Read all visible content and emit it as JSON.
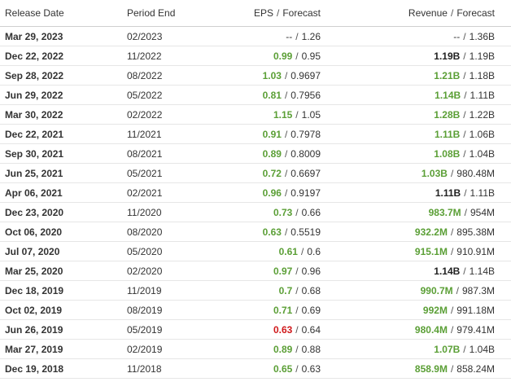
{
  "header": {
    "release_date": "Release Date",
    "period_end": "Period End",
    "eps": "EPS",
    "slash": "/",
    "eps_forecast": "Forecast",
    "revenue": "Revenue",
    "revenue_forecast": "Forecast"
  },
  "colors": {
    "beat": "#5b9f36",
    "miss": "#d0191b",
    "inline": "#222222"
  },
  "rows": [
    {
      "date": "Mar 29, 2023",
      "period": "02/2023",
      "eps": "--",
      "eps_forecast": "1.26",
      "eps_status": "na",
      "rev": "--",
      "rev_forecast": "1.36B",
      "rev_status": "na"
    },
    {
      "date": "Dec 22, 2022",
      "period": "11/2022",
      "eps": "0.99",
      "eps_forecast": "0.95",
      "eps_status": "pos",
      "rev": "1.19B",
      "rev_forecast": "1.19B",
      "rev_status": "neu"
    },
    {
      "date": "Sep 28, 2022",
      "period": "08/2022",
      "eps": "1.03",
      "eps_forecast": "0.9697",
      "eps_status": "pos",
      "rev": "1.21B",
      "rev_forecast": "1.18B",
      "rev_status": "pos"
    },
    {
      "date": "Jun 29, 2022",
      "period": "05/2022",
      "eps": "0.81",
      "eps_forecast": "0.7956",
      "eps_status": "pos",
      "rev": "1.14B",
      "rev_forecast": "1.11B",
      "rev_status": "pos"
    },
    {
      "date": "Mar 30, 2022",
      "period": "02/2022",
      "eps": "1.15",
      "eps_forecast": "1.05",
      "eps_status": "pos",
      "rev": "1.28B",
      "rev_forecast": "1.22B",
      "rev_status": "pos"
    },
    {
      "date": "Dec 22, 2021",
      "period": "11/2021",
      "eps": "0.91",
      "eps_forecast": "0.7978",
      "eps_status": "pos",
      "rev": "1.11B",
      "rev_forecast": "1.06B",
      "rev_status": "pos"
    },
    {
      "date": "Sep 30, 2021",
      "period": "08/2021",
      "eps": "0.89",
      "eps_forecast": "0.8009",
      "eps_status": "pos",
      "rev": "1.08B",
      "rev_forecast": "1.04B",
      "rev_status": "pos"
    },
    {
      "date": "Jun 25, 2021",
      "period": "05/2021",
      "eps": "0.72",
      "eps_forecast": "0.6697",
      "eps_status": "pos",
      "rev": "1.03B",
      "rev_forecast": "980.48M",
      "rev_status": "pos"
    },
    {
      "date": "Apr 06, 2021",
      "period": "02/2021",
      "eps": "0.96",
      "eps_forecast": "0.9197",
      "eps_status": "pos",
      "rev": "1.11B",
      "rev_forecast": "1.11B",
      "rev_status": "neu"
    },
    {
      "date": "Dec 23, 2020",
      "period": "11/2020",
      "eps": "0.73",
      "eps_forecast": "0.66",
      "eps_status": "pos",
      "rev": "983.7M",
      "rev_forecast": "954M",
      "rev_status": "pos"
    },
    {
      "date": "Oct 06, 2020",
      "period": "08/2020",
      "eps": "0.63",
      "eps_forecast": "0.5519",
      "eps_status": "pos",
      "rev": "932.2M",
      "rev_forecast": "895.38M",
      "rev_status": "pos"
    },
    {
      "date": "Jul 07, 2020",
      "period": "05/2020",
      "eps": "0.61",
      "eps_forecast": "0.6",
      "eps_status": "pos",
      "rev": "915.1M",
      "rev_forecast": "910.91M",
      "rev_status": "pos"
    },
    {
      "date": "Mar 25, 2020",
      "period": "02/2020",
      "eps": "0.97",
      "eps_forecast": "0.96",
      "eps_status": "pos",
      "rev": "1.14B",
      "rev_forecast": "1.14B",
      "rev_status": "neu"
    },
    {
      "date": "Dec 18, 2019",
      "period": "11/2019",
      "eps": "0.7",
      "eps_forecast": "0.68",
      "eps_status": "pos",
      "rev": "990.7M",
      "rev_forecast": "987.3M",
      "rev_status": "pos"
    },
    {
      "date": "Oct 02, 2019",
      "period": "08/2019",
      "eps": "0.71",
      "eps_forecast": "0.69",
      "eps_status": "pos",
      "rev": "992M",
      "rev_forecast": "991.18M",
      "rev_status": "pos"
    },
    {
      "date": "Jun 26, 2019",
      "period": "05/2019",
      "eps": "0.63",
      "eps_forecast": "0.64",
      "eps_status": "neg",
      "rev": "980.4M",
      "rev_forecast": "979.41M",
      "rev_status": "pos"
    },
    {
      "date": "Mar 27, 2019",
      "period": "02/2019",
      "eps": "0.89",
      "eps_forecast": "0.88",
      "eps_status": "pos",
      "rev": "1.07B",
      "rev_forecast": "1.04B",
      "rev_status": "pos"
    },
    {
      "date": "Dec 19, 2018",
      "period": "11/2018",
      "eps": "0.65",
      "eps_forecast": "0.63",
      "eps_status": "pos",
      "rev": "858.9M",
      "rev_forecast": "858.24M",
      "rev_status": "pos"
    }
  ]
}
